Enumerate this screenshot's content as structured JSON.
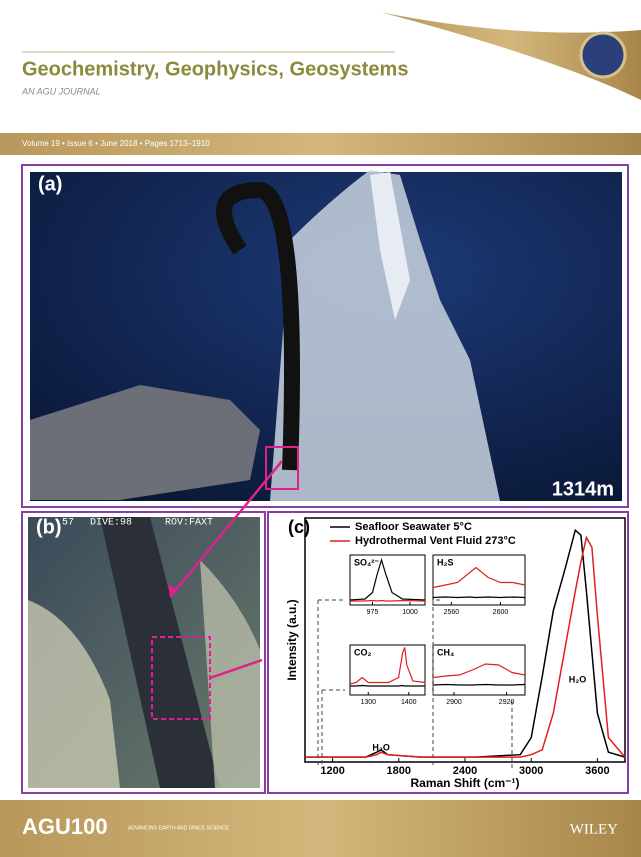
{
  "header": {
    "title": "Geochemistry, Geophysics, Geosystems",
    "subtitle": "AN AGU JOURNAL",
    "issue": "Volume 19 • Issue 6 • June 2018 • Pages 1713–1910"
  },
  "panels": {
    "a": {
      "label": "(a)",
      "depth": "1314m"
    },
    "b": {
      "label": "(b)",
      "overlay": [
        "57",
        "DIVE:98",
        "ROV:FAXT"
      ]
    },
    "c": {
      "label": "(c)"
    }
  },
  "footer": {
    "publisher_left": "AGU100",
    "tagline": "ADVANCING EARTH AND SPACE SCIENCE",
    "publisher_right": "WILEY"
  },
  "chart_data": {
    "type": "line",
    "xlabel": "Raman Shift (cm⁻¹)",
    "ylabel": "Intensity (a.u.)",
    "xlim": [
      950,
      3850
    ],
    "xticks": [
      1200,
      1800,
      2400,
      3000,
      3600
    ],
    "ylim": [
      0,
      1
    ],
    "x": [
      950,
      1200,
      1500,
      1600,
      1640,
      1700,
      2000,
      2500,
      2900,
      3000,
      3100,
      3200,
      3300,
      3400,
      3450,
      3500,
      3550,
      3600,
      3700,
      3850
    ],
    "series": [
      {
        "name": "Seafloor Seawater 5°C",
        "color": "#000000",
        "values": [
          0.02,
          0.02,
          0.02,
          0.04,
          0.05,
          0.03,
          0.02,
          0.02,
          0.03,
          0.1,
          0.35,
          0.62,
          0.78,
          0.95,
          0.93,
          0.7,
          0.45,
          0.2,
          0.04,
          0.02
        ]
      },
      {
        "name": "Hydrothermal Vent Fluid 273°C",
        "color": "#e0201c",
        "values": [
          0.02,
          0.02,
          0.02,
          0.03,
          0.04,
          0.03,
          0.02,
          0.02,
          0.02,
          0.03,
          0.05,
          0.2,
          0.45,
          0.7,
          0.82,
          0.92,
          0.88,
          0.6,
          0.1,
          0.02
        ]
      }
    ],
    "annotations": [
      "H₂O",
      "H₂O"
    ],
    "insets": [
      {
        "label": "SO₄²⁻",
        "xlim": [
          960,
          1010
        ],
        "xticks": [
          975,
          1000
        ],
        "x": [
          960,
          970,
          975,
          978,
          981,
          984,
          988,
          995,
          1010
        ],
        "series": [
          {
            "values": [
              0.1,
              0.12,
              0.25,
              0.6,
              0.9,
              0.6,
              0.25,
              0.12,
              0.1
            ]
          },
          {
            "values": [
              0.08,
              0.08,
              0.09,
              0.08,
              0.09,
              0.08,
              0.08,
              0.09,
              0.08
            ]
          }
        ]
      },
      {
        "label": "H₂S",
        "xlim": [
          2545,
          2620
        ],
        "xticks": [
          2560,
          2600
        ],
        "x": [
          2545,
          2555,
          2565,
          2575,
          2580,
          2590,
          2600,
          2610,
          2620
        ],
        "series": [
          {
            "values": [
              0.15,
              0.16,
              0.15,
              0.16,
              0.15,
              0.16,
              0.15,
              0.16,
              0.15
            ]
          },
          {
            "values": [
              0.35,
              0.4,
              0.45,
              0.65,
              0.75,
              0.55,
              0.45,
              0.45,
              0.4
            ]
          }
        ]
      },
      {
        "label": "CO₂",
        "xlim": [
          1255,
          1440
        ],
        "xticks": [
          1300,
          1400
        ],
        "x": [
          1255,
          1270,
          1285,
          1300,
          1350,
          1375,
          1385,
          1390,
          1395,
          1410,
          1440
        ],
        "series": [
          {
            "values": [
              0.18,
              0.18,
              0.19,
              0.18,
              0.18,
              0.18,
              0.19,
              0.18,
              0.18,
              0.18,
              0.18
            ]
          },
          {
            "values": [
              0.22,
              0.25,
              0.35,
              0.25,
              0.25,
              0.35,
              0.85,
              0.95,
              0.6,
              0.28,
              0.25
            ]
          }
        ]
      },
      {
        "label": "CH₄",
        "xlim": [
          2892,
          2927
        ],
        "xticks": [
          2900,
          2920
        ],
        "x": [
          2892,
          2897,
          2902,
          2907,
          2912,
          2917,
          2922,
          2927
        ],
        "series": [
          {
            "values": [
              0.2,
              0.21,
              0.2,
              0.2,
              0.21,
              0.2,
              0.2,
              0.21
            ]
          },
          {
            "values": [
              0.35,
              0.38,
              0.4,
              0.5,
              0.62,
              0.6,
              0.45,
              0.4
            ]
          }
        ]
      }
    ]
  }
}
